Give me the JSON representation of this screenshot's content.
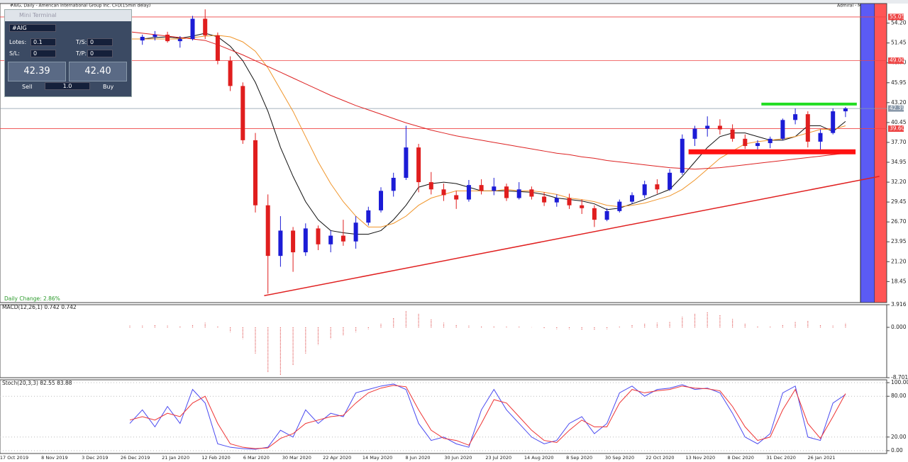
{
  "window": {
    "title": "#AIG, Daily - American International Group Inc. CFD(15min delay)",
    "right_title": "Admiral - Mini Terminal"
  },
  "mini_terminal": {
    "title": "Mini Terminal",
    "symbol": "#AIG",
    "lots_label": "Lotes:",
    "lots": "0.1",
    "ts_label": "T/S:",
    "ts": "0",
    "sl_label": "S/L:",
    "sl": "0",
    "tp_label": "T/P:",
    "tp": "0",
    "sell_price": "42.39",
    "buy_price": "42.40",
    "sell": "Sell",
    "volume": "1.0",
    "buy": "Buy"
  },
  "time_axis": {
    "labels": [
      "17 Oct 2019",
      "8 Nov 2019",
      "3 Dec 2019",
      "26 Dec 2019",
      "21 Jan 2020",
      "12 Feb 2020",
      "6 Mar 2020",
      "30 Mar 2020",
      "22 Apr 2020",
      "14 May 2020",
      "8 Jun 2020",
      "30 Jun 2020",
      "23 Jul 2020",
      "14 Aug 2020",
      "8 Sep 2020",
      "30 Sep 2020",
      "22 Oct 2020",
      "13 Nov 2020",
      "8 Dec 2020",
      "31 Dec 2020",
      "26 Jan 2021"
    ]
  },
  "chart_data": [
    {
      "type": "candlestick",
      "annotation": "Daily Change: 2.86%",
      "up_color": "#1c1cd6",
      "down_color": "#e01e1e",
      "ylim": [
        15.84,
        56.61
      ],
      "yticks": [
        {
          "value": 54.2,
          "label": "54.20"
        },
        {
          "value": 51.45,
          "label": "51.45"
        },
        {
          "value": 48.7,
          "label": "48.70"
        },
        {
          "value": 45.95,
          "label": "45.95"
        },
        {
          "value": 43.2,
          "label": "43.20"
        },
        {
          "value": 40.45,
          "label": "40.45"
        },
        {
          "value": 37.7,
          "label": "37.70"
        },
        {
          "value": 34.95,
          "label": "34.95"
        },
        {
          "value": 32.2,
          "label": "32.20"
        },
        {
          "value": 29.45,
          "label": "29.45"
        },
        {
          "value": 26.7,
          "label": "26.70"
        },
        {
          "value": 23.95,
          "label": "23.95"
        },
        {
          "value": 21.2,
          "label": "21.20"
        },
        {
          "value": 18.45,
          "label": "18.45"
        }
      ],
      "open": [
        52.0,
        51.8,
        52.3,
        52.6,
        51.7,
        52.0,
        54.8,
        52.5,
        49.0,
        45.5,
        38.0,
        29.0,
        22.0,
        25.5,
        22.5,
        25.8,
        23.6,
        24.8,
        24.0,
        26.6,
        28.3,
        31.0,
        32.8,
        37.0,
        32.2,
        31.2,
        30.4,
        29.8,
        31.8,
        31.0,
        31.6,
        30.0,
        31.2,
        30.2,
        29.4,
        30.0,
        29.0,
        28.6,
        27.0,
        28.2,
        29.5,
        30.4,
        31.9,
        31.2,
        33.5,
        38.2,
        39.6,
        40.0,
        39.5,
        38.2,
        37.2,
        37.6,
        38.2,
        40.8,
        41.6,
        37.8,
        39.0,
        42.0
      ],
      "high": [
        52.8,
        52.6,
        53.1,
        53.0,
        52.4,
        55.2,
        56.1,
        52.9,
        49.6,
        46.0,
        39.0,
        30.5,
        27.5,
        26.0,
        26.5,
        26.2,
        25.5,
        27.0,
        27.5,
        28.8,
        31.5,
        33.5,
        40.0,
        37.5,
        33.6,
        32.0,
        31.0,
        32.5,
        32.6,
        32.8,
        32.0,
        32.2,
        31.6,
        30.8,
        30.5,
        30.6,
        29.8,
        29.0,
        28.6,
        29.8,
        30.8,
        32.4,
        32.6,
        34.0,
        38.8,
        40.0,
        41.3,
        40.9,
        40.2,
        38.8,
        38.0,
        38.5,
        41.0,
        42.4,
        42.0,
        39.5,
        42.4,
        42.6
      ],
      "low": [
        51.3,
        51.2,
        51.8,
        51.5,
        50.8,
        51.8,
        52.0,
        48.5,
        44.8,
        37.5,
        28.0,
        16.8,
        20.5,
        19.8,
        22.0,
        22.8,
        22.5,
        23.4,
        23.0,
        26.2,
        28.0,
        30.2,
        32.5,
        30.8,
        30.5,
        29.6,
        28.5,
        29.5,
        30.5,
        30.4,
        29.6,
        29.8,
        29.8,
        28.9,
        28.8,
        28.5,
        27.8,
        26.0,
        26.8,
        28.0,
        29.2,
        30.0,
        30.6,
        31.0,
        33.2,
        37.2,
        38.5,
        38.8,
        37.8,
        36.8,
        36.5,
        36.9,
        38.0,
        40.2,
        37.0,
        36.6,
        38.8,
        41.2
      ],
      "close": [
        51.8,
        52.3,
        52.6,
        51.7,
        52.0,
        54.8,
        52.5,
        49.0,
        45.5,
        38.0,
        29.0,
        22.0,
        25.5,
        22.5,
        25.8,
        23.6,
        24.8,
        24.0,
        26.6,
        28.3,
        31.0,
        32.8,
        37.0,
        32.2,
        31.2,
        30.4,
        29.8,
        31.8,
        31.0,
        31.6,
        30.0,
        31.2,
        30.2,
        29.4,
        30.0,
        29.0,
        28.6,
        27.0,
        28.2,
        29.5,
        30.4,
        31.9,
        31.2,
        33.5,
        38.2,
        39.6,
        40.0,
        39.5,
        38.2,
        37.2,
        37.6,
        38.2,
        40.8,
        41.6,
        37.8,
        39.0,
        42.0,
        42.4
      ],
      "lines": [
        {
          "color": "#111111",
          "values": [
            52,
            52,
            52.2,
            52.3,
            52.1,
            52.4,
            52.8,
            52.3,
            51,
            49,
            46,
            42,
            37,
            33,
            29.5,
            27,
            25.5,
            25.2,
            25,
            25,
            25.5,
            27,
            29,
            31.5,
            32,
            32.2,
            32,
            31.5,
            31,
            31,
            31,
            30.9,
            30.8,
            30.5,
            30,
            29.8,
            29.6,
            29.2,
            28.4,
            28.6,
            29.2,
            29.8,
            30.5,
            31.2,
            33,
            35,
            37,
            38.5,
            39,
            39,
            38.5,
            38,
            38,
            38.5,
            40,
            40,
            39.2,
            40.6
          ]
        },
        {
          "color": "#f0952a",
          "values": [
            52,
            52,
            52,
            52,
            52,
            52.2,
            52.4,
            52.5,
            52.3,
            51.6,
            50.3,
            48,
            45,
            42,
            38.5,
            35,
            32,
            29.5,
            27.5,
            26,
            26,
            26.5,
            27.5,
            29,
            30,
            30.5,
            31,
            31,
            31,
            31,
            31.2,
            31,
            31,
            30.8,
            30.5,
            30,
            29.8,
            29.5,
            29,
            28.8,
            29,
            29.3,
            29.8,
            30.3,
            31.2,
            32.5,
            34,
            35.5,
            36.5,
            37.5,
            37.8,
            38,
            38.2,
            38.5,
            39,
            39.5,
            39.5,
            40
          ]
        },
        {
          "color": "#dd2222",
          "values": [
            53,
            52.8,
            52.6,
            52.4,
            52.2,
            52,
            51.8,
            51.2,
            50.5,
            49.8,
            49,
            48.2,
            47.4,
            46.6,
            45.8,
            45,
            44.2,
            43.5,
            42.8,
            42.2,
            41.6,
            41,
            40.4,
            39.9,
            39.4,
            39,
            38.6,
            38.3,
            38,
            37.7,
            37.4,
            37.1,
            36.8,
            36.5,
            36.2,
            36,
            35.7,
            35.5,
            35.2,
            35,
            34.8,
            34.6,
            34.4,
            34.2,
            34.1,
            34,
            34.1,
            34.2,
            34.4,
            34.6,
            34.8,
            35,
            35.2,
            35.4,
            35.6,
            35.8,
            36,
            36.2
          ]
        }
      ],
      "levels": [
        {
          "value": 55.05,
          "label": "55.05",
          "color": "#ee4444"
        },
        {
          "value": 49,
          "label": "49.00",
          "color": "#ee4444"
        },
        {
          "value": 42.39,
          "label": "42.39",
          "color": "#8a99aa"
        },
        {
          "value": 39.6,
          "label": "39.60",
          "color": "#ee4444"
        }
      ],
      "trendline": {
        "x": [
          10.7,
          59.7
        ],
        "values": [
          16.5,
          33.0
        ],
        "color": "#e02020"
      },
      "zones": [
        {
          "x": [
            50.3,
            57.9
          ],
          "value": 43.0,
          "color": "#22dd22"
        },
        {
          "x": [
            44.5,
            57.8
          ],
          "value": 36.4,
          "color": "#ff1111"
        }
      ]
    },
    {
      "type": "bar",
      "label": "MACD(12,26,1) 0.742 0.742",
      "color": "#e05555",
      "ylim": [
        -8.701,
        3.916
      ],
      "yticks": [
        3.916,
        {
          "value": 0,
          "label": "0.000"
        },
        -8.701
      ],
      "values": [
        0.3,
        0.3,
        0.4,
        0.3,
        0.2,
        0.5,
        0.8,
        0.2,
        -0.8,
        -2,
        -4.5,
        -7.8,
        -8.3,
        -6.5,
        -4.5,
        -3,
        -2,
        -1.4,
        -0.8,
        -0.3,
        0.6,
        1.6,
        2.8,
        2.4,
        1.4,
        0.8,
        0.5,
        0.3,
        0.2,
        0.2,
        0.1,
        0.1,
        0,
        -0.2,
        -0.3,
        -0.3,
        -0.4,
        -0.5,
        -0.3,
        0.1,
        0.4,
        0.7,
        0.8,
        1.0,
        1.8,
        2.4,
        2.6,
        2.2,
        1.5,
        0.7,
        0.2,
        0.1,
        0.5,
        1.0,
        1.2,
        0.4,
        0.3,
        0.742
      ]
    },
    {
      "type": "line",
      "label": "Stoch(20,3,3) 82.55 83.88",
      "ylim": [
        -4.2,
        104.2
      ],
      "yticks": [
        {
          "value": 100,
          "label": "100.00"
        },
        {
          "value": 80,
          "label": "80.00"
        },
        {
          "value": 20,
          "label": "20.00"
        },
        {
          "value": 0,
          "label": "0.00"
        }
      ],
      "series": [
        {
          "color": "#4a4af0",
          "values": [
            40,
            60,
            35,
            65,
            40,
            90,
            70,
            10,
            5,
            3,
            2,
            5,
            30,
            20,
            60,
            40,
            55,
            50,
            85,
            90,
            95,
            98,
            90,
            40,
            15,
            20,
            10,
            5,
            60,
            90,
            60,
            40,
            20,
            10,
            15,
            40,
            50,
            25,
            40,
            85,
            95,
            80,
            90,
            92,
            97,
            90,
            92,
            85,
            55,
            20,
            10,
            25,
            85,
            95,
            20,
            15,
            70,
            82.55
          ]
        },
        {
          "color": "#ee3333",
          "values": [
            45,
            50,
            45,
            55,
            50,
            70,
            80,
            40,
            10,
            5,
            3,
            4,
            18,
            25,
            40,
            45,
            50,
            52,
            70,
            85,
            92,
            96,
            94,
            60,
            30,
            18,
            15,
            8,
            40,
            75,
            70,
            50,
            30,
            15,
            12,
            30,
            45,
            35,
            35,
            70,
            90,
            85,
            88,
            90,
            95,
            92,
            91,
            88,
            65,
            35,
            15,
            20,
            60,
            90,
            40,
            18,
            50,
            83.88
          ]
        }
      ]
    }
  ]
}
